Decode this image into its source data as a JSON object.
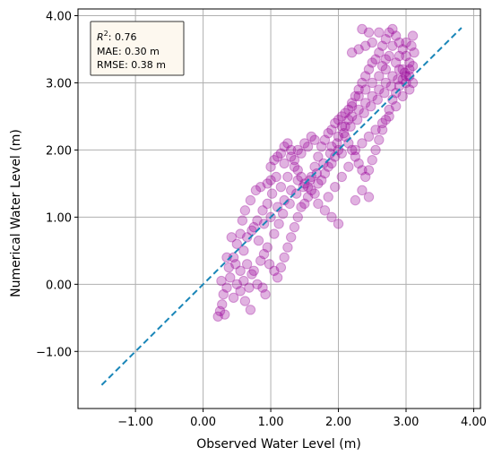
{
  "chart_data": {
    "type": "scatter",
    "title": "",
    "xlabel": "Observed Water Level (m)",
    "ylabel": "Numerical Water Level (m)",
    "xlim": [
      -1.85,
      4.1
    ],
    "ylim": [
      -1.85,
      4.1
    ],
    "xticks": [
      -1.0,
      0.0,
      1.0,
      2.0,
      3.0,
      4.0
    ],
    "yticks": [
      -1.0,
      0.0,
      1.0,
      2.0,
      3.0,
      4.0
    ],
    "xtick_labels": [
      "−1.00",
      "0.00",
      "1.00",
      "2.00",
      "3.00",
      "4.00"
    ],
    "ytick_labels": [
      "−1.00",
      "0.00",
      "1.00",
      "2.00",
      "3.00",
      "4.00"
    ],
    "grid": true,
    "point_color": "#990099",
    "reference_line": {
      "from": [
        -1.5,
        -1.5
      ],
      "to": [
        3.82,
        3.82
      ],
      "style": "dashed",
      "color": "#1a86b8"
    },
    "stats": {
      "r2_label": "R",
      "r2_sup": "2",
      "r2_value": ": 0.76",
      "mae": "MAE: 0.30 m",
      "rmse": "RMSE: 0.38 m"
    },
    "points": [
      [
        0.22,
        -0.48
      ],
      [
        0.25,
        -0.4
      ],
      [
        0.28,
        -0.3
      ],
      [
        0.32,
        -0.45
      ],
      [
        0.3,
        -0.15
      ],
      [
        0.35,
        -0.05
      ],
      [
        0.27,
        0.05
      ],
      [
        0.4,
        0.1
      ],
      [
        0.45,
        -0.2
      ],
      [
        0.5,
        0.0
      ],
      [
        0.55,
        -0.1
      ],
      [
        0.62,
        -0.25
      ],
      [
        0.7,
        -0.38
      ],
      [
        0.38,
        0.25
      ],
      [
        0.45,
        0.4
      ],
      [
        0.5,
        0.6
      ],
      [
        0.42,
        0.7
      ],
      [
        0.55,
        0.75
      ],
      [
        0.6,
        0.5
      ],
      [
        0.65,
        0.3
      ],
      [
        0.72,
        0.15
      ],
      [
        0.8,
        0.0
      ],
      [
        0.88,
        -0.05
      ],
      [
        0.92,
        -0.15
      ],
      [
        0.58,
        0.95
      ],
      [
        0.62,
        1.1
      ],
      [
        0.7,
        1.25
      ],
      [
        0.78,
        1.4
      ],
      [
        0.85,
        1.45
      ],
      [
        0.95,
        1.5
      ],
      [
        1.0,
        1.55
      ],
      [
        0.75,
        0.85
      ],
      [
        0.82,
        0.65
      ],
      [
        0.9,
        0.45
      ],
      [
        0.98,
        0.3
      ],
      [
        1.05,
        0.2
      ],
      [
        1.1,
        0.1
      ],
      [
        1.15,
        0.25
      ],
      [
        1.2,
        0.4
      ],
      [
        1.25,
        0.55
      ],
      [
        1.3,
        0.7
      ],
      [
        1.35,
        0.85
      ],
      [
        1.4,
        1.0
      ],
      [
        1.45,
        1.15
      ],
      [
        1.5,
        1.2
      ],
      [
        1.55,
        1.3
      ],
      [
        1.6,
        1.4
      ],
      [
        1.65,
        1.35
      ],
      [
        1.7,
        1.5
      ],
      [
        1.75,
        1.55
      ],
      [
        1.8,
        1.65
      ],
      [
        1.85,
        1.75
      ],
      [
        1.9,
        1.8
      ],
      [
        1.95,
        1.9
      ],
      [
        2.0,
        2.0
      ],
      [
        2.05,
        1.95
      ],
      [
        1.0,
        1.75
      ],
      [
        1.05,
        1.85
      ],
      [
        1.1,
        1.9
      ],
      [
        1.15,
        1.95
      ],
      [
        1.2,
        2.05
      ],
      [
        1.25,
        2.1
      ],
      [
        1.3,
        2.0
      ],
      [
        1.35,
        1.85
      ],
      [
        1.4,
        1.7
      ],
      [
        1.45,
        1.6
      ],
      [
        1.5,
        1.5
      ],
      [
        1.55,
        1.45
      ],
      [
        1.6,
        1.6
      ],
      [
        1.65,
        1.75
      ],
      [
        1.7,
        1.9
      ],
      [
        1.75,
        2.05
      ],
      [
        1.8,
        2.15
      ],
      [
        1.85,
        2.25
      ],
      [
        1.9,
        2.3
      ],
      [
        1.95,
        2.4
      ],
      [
        2.0,
        2.45
      ],
      [
        2.05,
        2.5
      ],
      [
        2.1,
        2.55
      ],
      [
        2.15,
        2.6
      ],
      [
        2.1,
        2.2
      ],
      [
        2.15,
        2.1
      ],
      [
        2.2,
        2.0
      ],
      [
        2.25,
        1.9
      ],
      [
        2.3,
        1.8
      ],
      [
        2.35,
        1.7
      ],
      [
        2.4,
        1.6
      ],
      [
        2.45,
        1.7
      ],
      [
        2.5,
        1.85
      ],
      [
        2.55,
        2.0
      ],
      [
        2.6,
        2.15
      ],
      [
        2.65,
        2.3
      ],
      [
        2.7,
        2.45
      ],
      [
        2.75,
        2.6
      ],
      [
        2.8,
        2.75
      ],
      [
        2.85,
        2.85
      ],
      [
        2.9,
        2.95
      ],
      [
        2.95,
        3.05
      ],
      [
        3.0,
        3.1
      ],
      [
        3.05,
        3.2
      ],
      [
        2.2,
        2.7
      ],
      [
        2.25,
        2.8
      ],
      [
        2.3,
        2.9
      ],
      [
        2.35,
        3.0
      ],
      [
        2.4,
        3.1
      ],
      [
        2.45,
        3.2
      ],
      [
        2.5,
        3.3
      ],
      [
        2.55,
        3.35
      ],
      [
        2.6,
        3.45
      ],
      [
        2.65,
        3.55
      ],
      [
        2.7,
        3.65
      ],
      [
        2.75,
        3.75
      ],
      [
        2.8,
        3.8
      ],
      [
        2.85,
        3.7
      ],
      [
        2.9,
        3.6
      ],
      [
        2.95,
        3.5
      ],
      [
        3.0,
        3.4
      ],
      [
        3.05,
        3.3
      ],
      [
        3.1,
        3.25
      ],
      [
        3.08,
        3.55
      ],
      [
        2.6,
        3.75
      ],
      [
        2.5,
        3.6
      ],
      [
        2.4,
        3.55
      ],
      [
        2.3,
        3.5
      ],
      [
        2.2,
        3.45
      ],
      [
        2.35,
        3.8
      ],
      [
        2.45,
        3.75
      ],
      [
        3.1,
        3.7
      ],
      [
        0.35,
        0.4
      ],
      [
        0.48,
        0.3
      ],
      [
        0.55,
        0.2
      ],
      [
        0.6,
        0.05
      ],
      [
        0.68,
        -0.05
      ],
      [
        0.75,
        0.2
      ],
      [
        0.85,
        0.35
      ],
      [
        0.95,
        0.55
      ],
      [
        1.05,
        0.75
      ],
      [
        1.12,
        0.9
      ],
      [
        1.18,
        1.05
      ],
      [
        1.28,
        1.2
      ],
      [
        1.38,
        1.35
      ],
      [
        1.48,
        1.45
      ],
      [
        1.58,
        1.55
      ],
      [
        1.68,
        1.65
      ],
      [
        1.78,
        1.8
      ],
      [
        1.88,
        1.95
      ],
      [
        1.98,
        2.1
      ],
      [
        2.08,
        2.25
      ],
      [
        2.18,
        2.35
      ],
      [
        2.28,
        2.45
      ],
      [
        2.38,
        2.55
      ],
      [
        2.48,
        2.65
      ],
      [
        2.58,
        2.75
      ],
      [
        2.68,
        2.85
      ],
      [
        2.78,
        2.95
      ],
      [
        2.88,
        3.05
      ],
      [
        2.98,
        3.15
      ],
      [
        1.15,
        1.45
      ],
      [
        1.25,
        1.6
      ],
      [
        1.35,
        1.75
      ],
      [
        1.45,
        1.95
      ],
      [
        1.55,
        2.05
      ],
      [
        1.65,
        2.15
      ],
      [
        1.6,
        2.2
      ],
      [
        1.5,
        2.1
      ],
      [
        1.4,
        2.0
      ],
      [
        1.3,
        1.9
      ],
      [
        1.2,
        1.8
      ],
      [
        1.9,
        2.05
      ],
      [
        2.0,
        2.2
      ],
      [
        2.1,
        2.35
      ],
      [
        2.2,
        2.5
      ],
      [
        2.3,
        2.6
      ],
      [
        2.4,
        2.7
      ],
      [
        2.5,
        2.8
      ],
      [
        2.6,
        2.9
      ],
      [
        2.7,
        3.0
      ],
      [
        2.8,
        3.1
      ],
      [
        2.9,
        3.2
      ],
      [
        3.0,
        3.0
      ],
      [
        2.95,
        2.8
      ],
      [
        2.85,
        2.65
      ],
      [
        2.75,
        2.5
      ],
      [
        2.65,
        2.4
      ],
      [
        2.55,
        2.3
      ],
      [
        2.45,
        2.2
      ],
      [
        2.35,
        2.1
      ],
      [
        2.25,
        2.0
      ],
      [
        1.7,
        1.2
      ],
      [
        1.8,
        1.1
      ],
      [
        1.9,
        1.0
      ],
      [
        2.0,
        0.9
      ],
      [
        1.85,
        1.3
      ],
      [
        1.95,
        1.45
      ],
      [
        2.05,
        1.6
      ],
      [
        2.15,
        1.75
      ],
      [
        2.25,
        1.25
      ],
      [
        2.35,
        1.4
      ],
      [
        2.45,
        1.3
      ],
      [
        0.9,
        0.9
      ],
      [
        1.0,
        1.0
      ],
      [
        1.1,
        1.15
      ],
      [
        1.2,
        1.25
      ],
      [
        1.3,
        1.4
      ],
      [
        1.4,
        1.55
      ],
      [
        0.65,
        0.7
      ],
      [
        0.72,
        0.8
      ],
      [
        0.8,
        0.95
      ],
      [
        0.88,
        1.1
      ],
      [
        0.95,
        1.2
      ],
      [
        1.02,
        1.35
      ],
      [
        1.08,
        1.6
      ],
      [
        2.75,
        3.4
      ],
      [
        2.85,
        3.3
      ],
      [
        2.95,
        3.2
      ],
      [
        3.05,
        3.1
      ],
      [
        2.7,
        3.2
      ],
      [
        2.6,
        3.1
      ],
      [
        2.5,
        3.0
      ],
      [
        2.4,
        2.9
      ],
      [
        2.3,
        2.8
      ],
      [
        2.2,
        2.65
      ],
      [
        2.15,
        2.45
      ],
      [
        2.05,
        2.35
      ],
      [
        3.05,
        2.9
      ],
      [
        3.1,
        3.0
      ],
      [
        3.12,
        3.45
      ],
      [
        3.0,
        3.6
      ],
      [
        2.9,
        3.4
      ],
      [
        2.8,
        3.55
      ],
      [
        2.7,
        3.35
      ],
      [
        2.65,
        3.25
      ]
    ]
  }
}
